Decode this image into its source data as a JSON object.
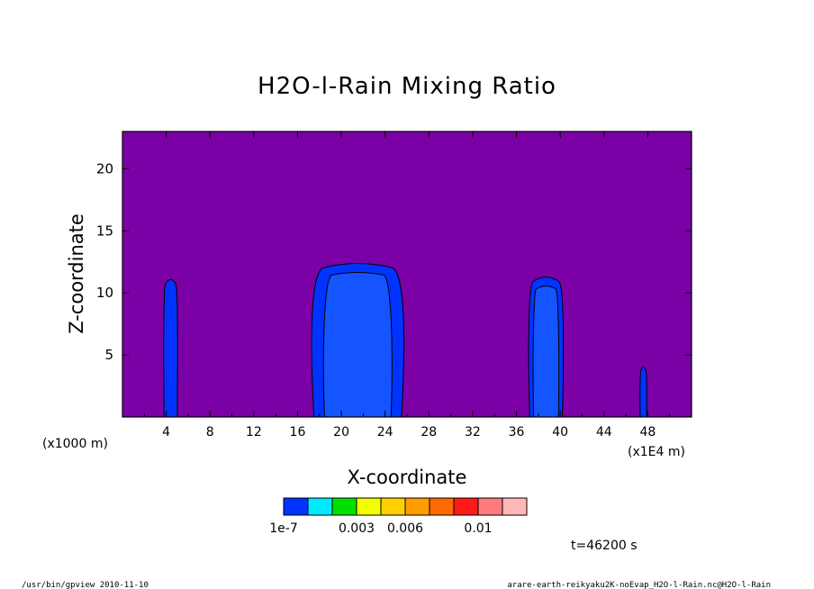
{
  "chart_data": {
    "type": "contour",
    "title": "H2O-l-Rain Mixing Ratio",
    "xlabel": "X-coordinate",
    "ylabel": "Z-coordinate",
    "x_unit_left": "(x1000 m)",
    "x_unit_right": "(x1E4 m)",
    "xlim": [
      0,
      52
    ],
    "ylim": [
      0,
      23
    ],
    "x_ticks": [
      4,
      8,
      12,
      16,
      20,
      24,
      28,
      32,
      36,
      40,
      44,
      48
    ],
    "y_ticks": [
      5,
      10,
      15,
      20
    ],
    "background_color": "#7b00a6",
    "cells": [
      {
        "x_range": [
          3.8,
          5.0
        ],
        "top": 11.0,
        "level": 1
      },
      {
        "x_range": [
          17.5,
          25.5
        ],
        "top": 12.3,
        "level": 2
      },
      {
        "x_range": [
          37.2,
          40.2
        ],
        "top": 11.2,
        "level": 2
      },
      {
        "x_range": [
          47.3,
          47.9
        ],
        "top": 4.0,
        "level": 1
      }
    ],
    "colorbar": {
      "colors": [
        "#0033ff",
        "#00eaff",
        "#00e000",
        "#f2ff00",
        "#ffd000",
        "#ff9d00",
        "#ff6a00",
        "#ff1a1a",
        "#ff7a7a",
        "#ffb8b8"
      ],
      "tick_labels": [
        "1e-7",
        "0.003",
        "0.006",
        "0.01"
      ],
      "tick_positions": [
        0,
        2,
        4,
        7
      ]
    },
    "time_label": "t=46200 s"
  },
  "footer": {
    "left": "/usr/bin/gpview  2010-11-10",
    "right": "arare-earth-reikyaku2K-noEvap_H2O-l-Rain.nc@H2O-l-Rain"
  }
}
